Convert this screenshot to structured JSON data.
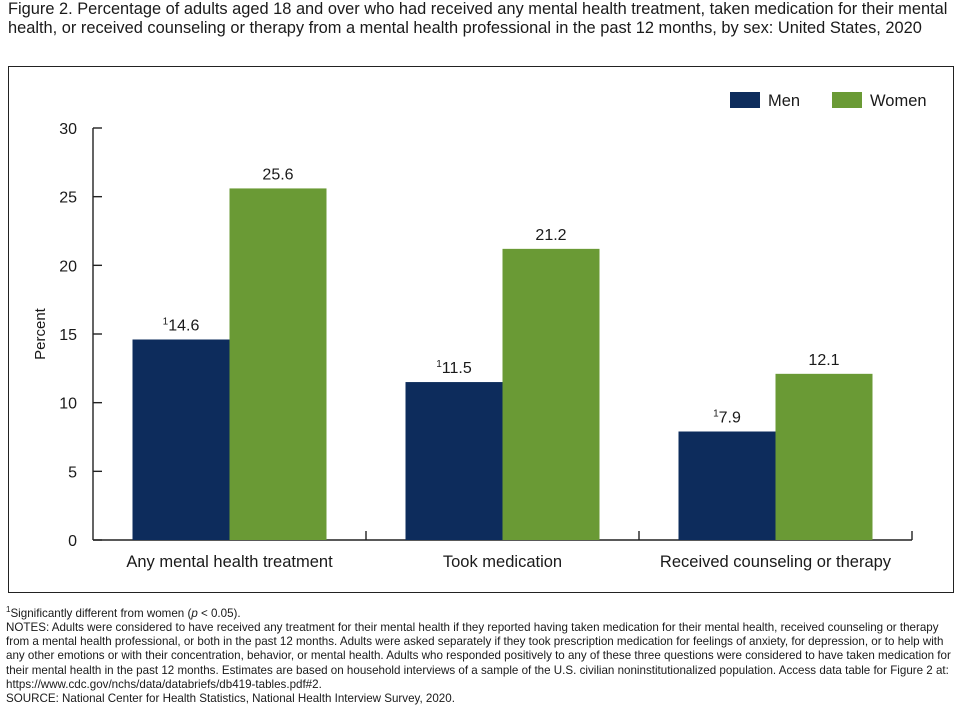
{
  "title": "Figure 2. Percentage of adults aged 18 and over who had received any mental health treatment, taken medication for their mental health, or received counseling or therapy from a mental health professional in the past 12 months, by sex: United States, 2020",
  "chart_data": {
    "type": "bar",
    "title": "",
    "xlabel": "",
    "ylabel": "Percent",
    "ylim": [
      0,
      30
    ],
    "yticks": [
      0,
      5,
      10,
      15,
      20,
      25,
      30
    ],
    "categories": [
      "Any mental health treatment",
      "Took medication",
      "Received counseling or therapy"
    ],
    "series": [
      {
        "name": "Men",
        "color": "#0d2c5c",
        "values": [
          14.6,
          11.5,
          7.9
        ],
        "labels": [
          "14.6",
          "11.5",
          "7.9"
        ],
        "footnote": [
          "1",
          "1",
          "1"
        ]
      },
      {
        "name": "Women",
        "color": "#6a9a35",
        "values": [
          25.6,
          21.2,
          12.1
        ],
        "labels": [
          "25.6",
          "21.2",
          "12.1"
        ],
        "footnote": [
          "",
          "",
          ""
        ]
      }
    ],
    "legend_position": "top-right",
    "grid": false
  },
  "notes": {
    "footnote_marker": "1",
    "footnote_text_before": "Significantly different from women (",
    "footnote_p": "p",
    "footnote_text_after": " < 0.05).",
    "notes_text": "NOTES: Adults were considered to have received any treatment for their mental health if they reported having taken medication for their mental health, received counseling or therapy from a mental health professional, or both in the past 12 months. Adults were asked separately if they took prescription medication for feelings of anxiety, for depression, or to help with any other emotions or with their concentration, behavior, or mental health. Adults who responded positively to any of these three questions were considered to have taken medication for their mental health in the past 12 months. Estimates are based on household interviews of a sample of the U.S. civilian noninstitutionalized population. Access data table for Figure 2 at: https://www.cdc.gov/nchs/data/databriefs/db419-tables.pdf#2.",
    "source_text": "SOURCE: National Center for Health Statistics, National Health Interview Survey, 2020."
  }
}
